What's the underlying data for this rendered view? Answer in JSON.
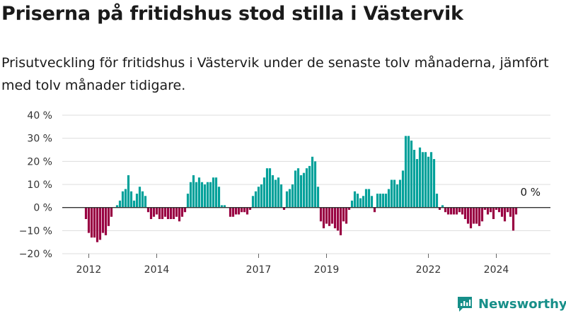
{
  "header": {
    "title": "Priserna på fritidshus stod stilla i Västervik",
    "subtitle": "Prisutveckling för fritidshus i Västervik under de senaste tolv månaderna, jämfört med tolv månader tidigare."
  },
  "brand": {
    "name": "Newsworthy",
    "icon": "newsworthy-logo-icon"
  },
  "colors": {
    "positive": "#00a19a",
    "negative": "#990042",
    "gridline": "#dddddd",
    "zeroline": "#333333",
    "brand": "#178f89"
  },
  "chart_data": {
    "type": "bar",
    "title": "",
    "xlabel": "",
    "ylabel": "",
    "ylim": [
      -20,
      40
    ],
    "yticks": [
      40,
      30,
      20,
      10,
      0,
      -10,
      -20
    ],
    "ytick_labels": [
      "40 %",
      "30 %",
      "20 %",
      "10 %",
      "0 %",
      "−10 %",
      "−20 %"
    ],
    "xticks": [
      2012,
      2014,
      2017,
      2019,
      2022,
      2024
    ],
    "grid": true,
    "start": "2011-12",
    "frequency": "monthly",
    "end_label": "0 %",
    "values": [
      -5,
      -11,
      -13,
      -13,
      -15,
      -14,
      -11,
      -12,
      -8,
      -4,
      0,
      1,
      3,
      7,
      8,
      14,
      7,
      3,
      6,
      9,
      7,
      5,
      -2,
      -5,
      -4,
      -3,
      -5,
      -5,
      -4,
      -5,
      -5,
      -5,
      -4,
      -6,
      -4,
      -2,
      6,
      11,
      14,
      11,
      13,
      11,
      10,
      11,
      11,
      13,
      13,
      9,
      1,
      1,
      0,
      -4,
      -4,
      -3,
      -3,
      -2,
      -2,
      -3,
      -1,
      5,
      7,
      9,
      10,
      13,
      17,
      17,
      14,
      12,
      13,
      10,
      -1,
      7,
      8,
      10,
      16,
      17,
      14,
      15,
      17,
      18,
      22,
      20,
      9,
      -6,
      -9,
      -7,
      -8,
      -7,
      -9,
      -10,
      -12,
      -6,
      -7,
      -1,
      3,
      7,
      6,
      4,
      5,
      8,
      8,
      5,
      -2,
      6,
      6,
      6,
      6,
      8,
      12,
      12,
      10,
      12,
      16,
      31,
      31,
      29,
      25,
      21,
      26,
      24,
      24,
      22,
      24,
      21,
      6,
      -1,
      1,
      -2,
      -3,
      -3,
      -3,
      -3,
      -2,
      -3,
      -5,
      -7,
      -9,
      -7,
      -7,
      -8,
      -6,
      -1,
      -3,
      -2,
      -5,
      -1,
      -2,
      -4,
      -6,
      -2,
      -4,
      -10,
      -3,
      0
    ]
  }
}
